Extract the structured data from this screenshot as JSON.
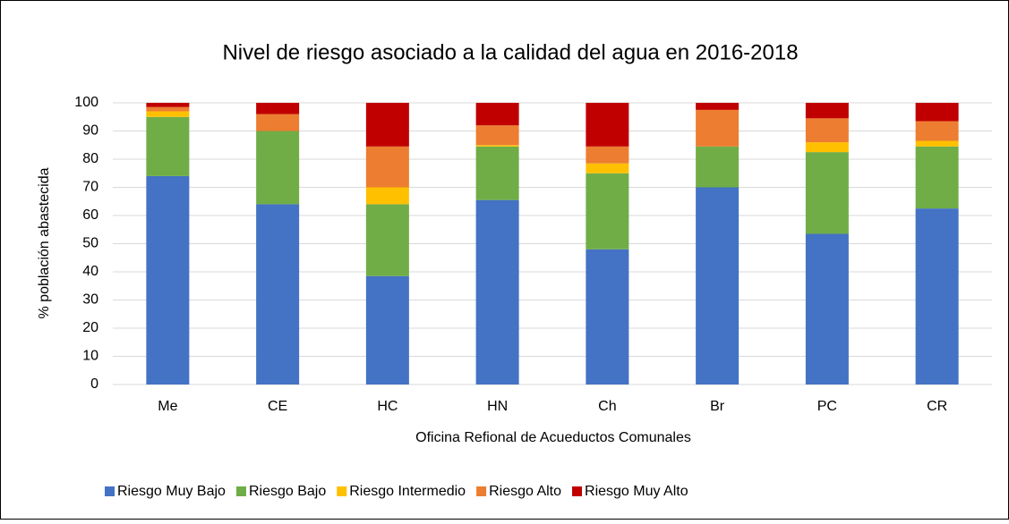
{
  "chart_data": {
    "type": "stacked_bar",
    "title": "Nivel de riesgo asociado a la calidad del agua en 2016-2018",
    "x_label": "Oficina Refional de Acueductos Comunales",
    "y_label": "% población abastecida",
    "categories": [
      "Me",
      "CE",
      "HC",
      "HN",
      "Ch",
      "Br",
      "PC",
      "CR"
    ],
    "series": [
      {
        "name": "Riesgo Muy Bajo",
        "color": "#4472c4",
        "values": [
          74,
          64,
          38.5,
          65.5,
          48,
          70,
          53.5,
          62.5
        ]
      },
      {
        "name": "Riesgo Bajo",
        "color": "#70ad47",
        "values": [
          21,
          26,
          25.5,
          19,
          27,
          14.5,
          29,
          22
        ]
      },
      {
        "name": "Riesgo Intermedio",
        "color": "#ffc000",
        "values": [
          2,
          0,
          6,
          0.5,
          3.5,
          0,
          3.5,
          2
        ]
      },
      {
        "name": "Riesgo Alto",
        "color": "#ed7d31",
        "values": [
          1.5,
          6,
          14.5,
          7,
          6,
          13,
          8.5,
          7
        ]
      },
      {
        "name": "Riesgo Muy Alto",
        "color": "#c00000",
        "values": [
          1.5,
          4,
          15.5,
          8,
          15.5,
          2.5,
          5.5,
          6.5
        ]
      }
    ],
    "ylim": [
      0,
      100
    ],
    "yticks": [
      0,
      10,
      20,
      30,
      40,
      50,
      60,
      70,
      80,
      90,
      100
    ],
    "grid": true,
    "legend": "bottom"
  }
}
